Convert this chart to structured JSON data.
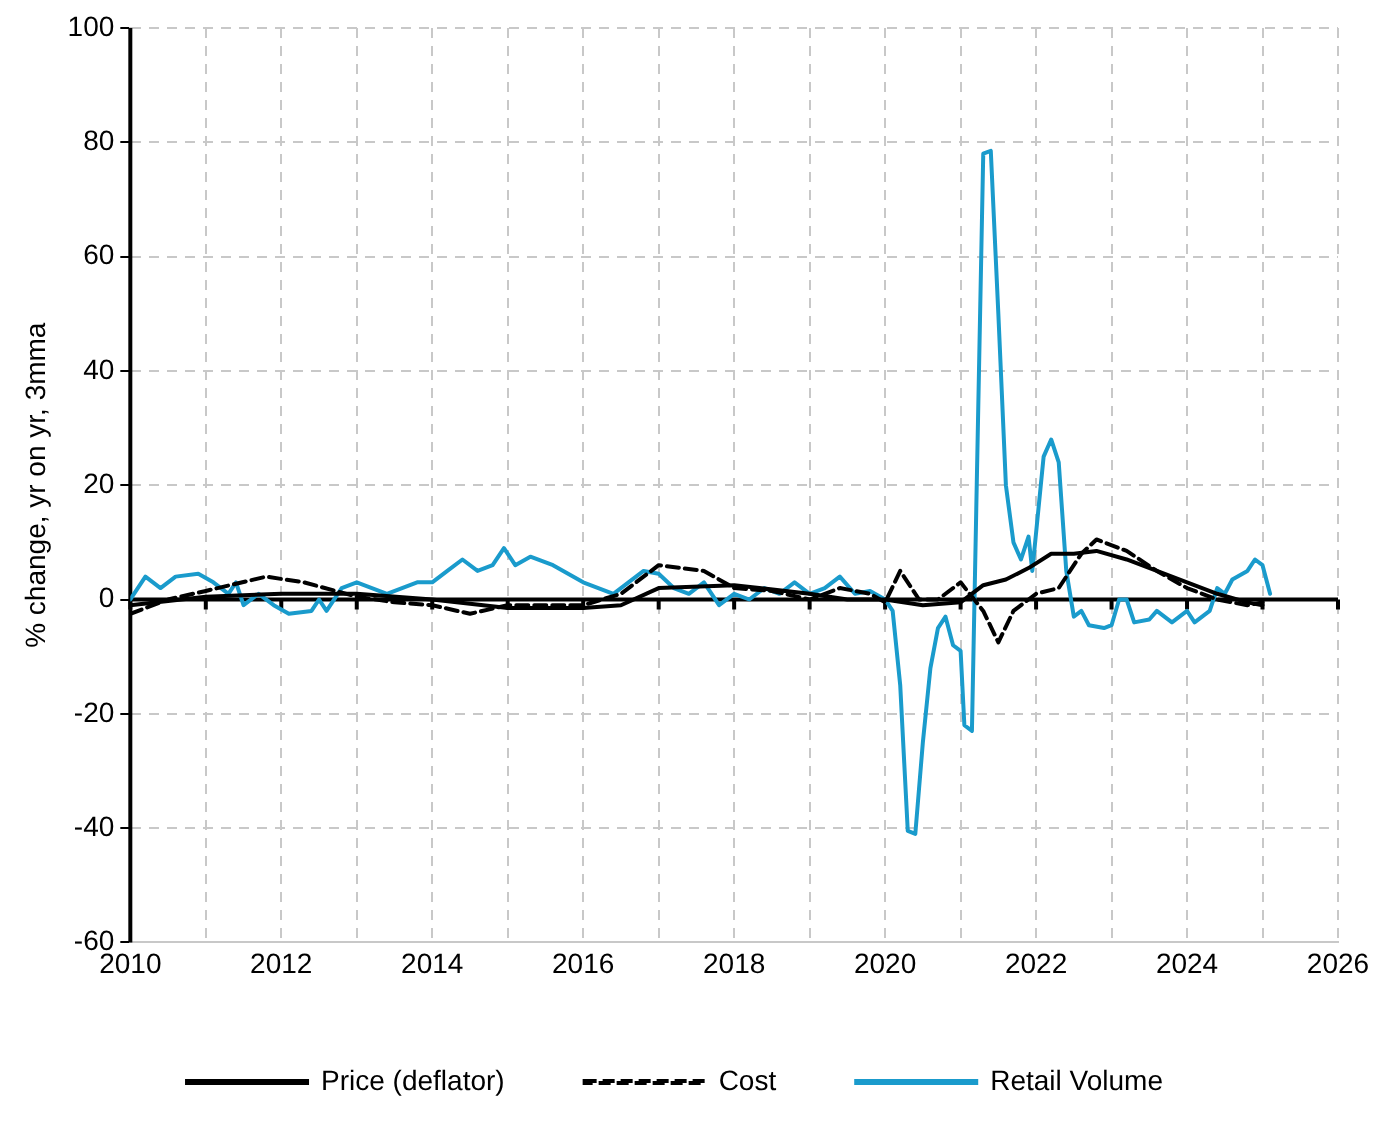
{
  "chart_data": {
    "type": "line",
    "ylabel": "% change, yr on yr, 3mma",
    "xlim": [
      2010,
      2026
    ],
    "xticks": [
      2010,
      {
        "value": 2011,
        "label": null
      },
      2012,
      {
        "value": 2013,
        "label": null
      },
      2014,
      {
        "value": 2015,
        "label": null
      },
      2016,
      {
        "value": 2017,
        "label": null
      },
      2018,
      {
        "value": 2019,
        "label": null
      },
      2020,
      {
        "value": 2021,
        "label": null
      },
      2022,
      {
        "value": 2023,
        "label": null
      },
      2024,
      {
        "value": 2025,
        "label": null
      },
      2026
    ],
    "ylim": [
      -60,
      100
    ],
    "yticks": [
      -60,
      -40,
      -20,
      0,
      20,
      40,
      60,
      80,
      100
    ],
    "grid": true,
    "legend": "bottom",
    "marker": "none",
    "ref_lines": [
      {
        "axis": "y",
        "value": 0,
        "color": "#000000"
      }
    ],
    "series": [
      {
        "name": "Price (deflator)",
        "color": "#000000",
        "line_style": "solid",
        "x": [
          2010,
          2011,
          2012,
          2013,
          2014,
          2015,
          2016,
          2016.5,
          2017,
          2018,
          2019,
          2019.5,
          2020,
          2020.5,
          2021,
          2021.3,
          2021.6,
          2021.9,
          2022.2,
          2022.5,
          2022.8,
          2023.2,
          2023.6,
          2024,
          2024.4,
          2024.8,
          2025
        ],
        "values": [
          -1,
          0.5,
          1,
          1,
          0,
          -1.5,
          -1.5,
          -1,
          2,
          2.5,
          1,
          0,
          0,
          -1,
          -0.5,
          2.5,
          3.5,
          5.5,
          8,
          8,
          8.5,
          7,
          5,
          3,
          1,
          -0.5,
          -1
        ]
      },
      {
        "name": "Cost",
        "color": "#000000",
        "line_style": "dashed",
        "x": [
          2010,
          2010.5,
          2011,
          2011.8,
          2012.3,
          2013,
          2013.5,
          2014,
          2014.5,
          2015,
          2016,
          2016.5,
          2017,
          2017.6,
          2018,
          2018.5,
          2019,
          2019.4,
          2019.8,
          2020,
          2020.2,
          2020.45,
          2020.7,
          2021,
          2021.3,
          2021.5,
          2021.7,
          2022,
          2022.3,
          2022.6,
          2022.8,
          2023.2,
          2023.6,
          2024,
          2024.4,
          2024.8,
          2025
        ],
        "values": [
          -2.5,
          0,
          1.5,
          4,
          3,
          0.5,
          -0.5,
          -1,
          -2.5,
          -1,
          -1,
          1,
          6,
          5,
          2,
          1.5,
          0,
          2,
          1,
          -0.5,
          5,
          0,
          0,
          3,
          -2,
          -7.5,
          -2,
          1,
          2,
          8,
          10.5,
          8.5,
          5,
          2,
          0,
          -1,
          -0.5
        ]
      },
      {
        "name": "Retail Volume",
        "color": "#1a9bcc",
        "line_style": "solid",
        "x": [
          2010,
          2010.2,
          2010.4,
          2010.6,
          2010.9,
          2011.1,
          2011.3,
          2011.4,
          2011.5,
          2011.7,
          2011.9,
          2012.1,
          2012.4,
          2012.5,
          2012.6,
          2012.8,
          2013,
          2013.2,
          2013.4,
          2013.6,
          2013.8,
          2014,
          2014.2,
          2014.4,
          2014.6,
          2014.8,
          2014.95,
          2015.1,
          2015.3,
          2015.6,
          2015.8,
          2016,
          2016.2,
          2016.4,
          2016.6,
          2016.8,
          2017,
          2017.2,
          2017.4,
          2017.6,
          2017.8,
          2018,
          2018.2,
          2018.4,
          2018.6,
          2018.8,
          2019,
          2019.2,
          2019.4,
          2019.6,
          2019.8,
          2020,
          2020.1,
          2020.2,
          2020.3,
          2020.4,
          2020.5,
          2020.6,
          2020.7,
          2020.8,
          2020.9,
          2021,
          2021.05,
          2021.15,
          2021.3,
          2021.4,
          2021.5,
          2021.6,
          2021.7,
          2021.8,
          2021.9,
          2021.95,
          2022.1,
          2022.2,
          2022.3,
          2022.4,
          2022.5,
          2022.6,
          2022.7,
          2022.9,
          2023,
          2023.1,
          2023.2,
          2023.3,
          2023.5,
          2023.6,
          2023.8,
          2024,
          2024.1,
          2024.3,
          2024.4,
          2024.5,
          2024.6,
          2024.8,
          2024.9,
          2025,
          2025.1
        ],
        "values": [
          0,
          4,
          2,
          4,
          4.5,
          3,
          1,
          3,
          -1,
          1,
          -1,
          -2.5,
          -2,
          0,
          -2,
          2,
          3,
          2,
          1,
          2,
          3,
          3,
          5,
          7,
          5,
          6,
          9,
          6,
          7.5,
          6,
          4.5,
          3,
          2,
          1,
          3,
          5,
          4.5,
          2,
          1,
          3,
          -1,
          1,
          0,
          2,
          1,
          3,
          1,
          2,
          4,
          1,
          1.5,
          0,
          -2,
          -15,
          -40.5,
          -41,
          -25,
          -12,
          -5,
          -3,
          -8,
          -9,
          -22,
          -23,
          78,
          78.5,
          50,
          20,
          10,
          7,
          11,
          5,
          25,
          28,
          24,
          5,
          -3,
          -2,
          -4.5,
          -5,
          -4.5,
          0,
          0,
          -4,
          -3.5,
          -2,
          -4,
          -2,
          -4,
          -2,
          2,
          1,
          3.5,
          5,
          7,
          6,
          1
        ]
      }
    ]
  }
}
